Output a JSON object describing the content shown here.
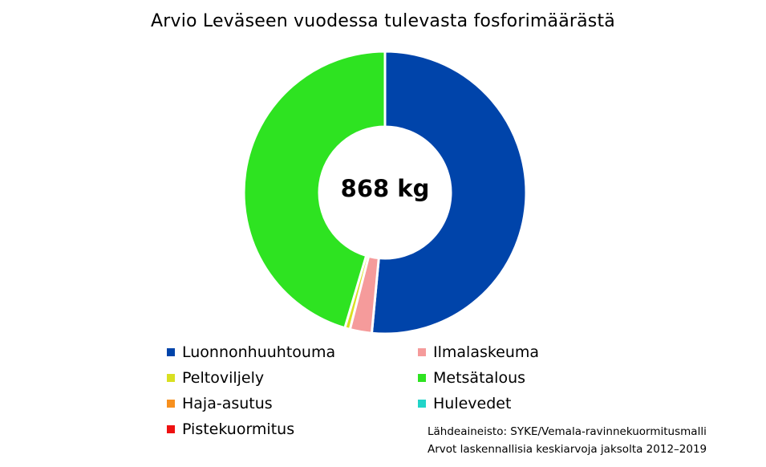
{
  "chart_data": {
    "type": "pie",
    "title": "Arvio Leväseen vuodessa tulevasta fosforimäärästä",
    "center_label": "868 kg",
    "total_kg": 868,
    "slices": [
      {
        "label": "Luonnonhuuhtouma",
        "share_pct": 51.5,
        "color": "#0044aa"
      },
      {
        "label": "Ilmalaskeuma",
        "share_pct": 2.5,
        "color": "#f59b9b"
      },
      {
        "label": "Peltoviljely",
        "share_pct": 0.6,
        "color": "#d9e021"
      },
      {
        "label": "Metsätalous",
        "share_pct": 45.4,
        "color": "#2ee321"
      },
      {
        "label": "Haja-asutus",
        "share_pct": 0.0,
        "color": "#f7901e"
      },
      {
        "label": "Hulevedet",
        "share_pct": 0.0,
        "color": "#21d4c8"
      },
      {
        "label": "Pistekuormitus",
        "share_pct": 0.0,
        "color": "#ee1111"
      }
    ],
    "legend_position": "bottom",
    "donut": true
  },
  "notes": [
    "Lähdeaineisto: SYKE/Vemala-ravinnekuormitusmalli",
    "Arvot laskennallisia keskiarvoja jaksolta 2012–2019"
  ]
}
